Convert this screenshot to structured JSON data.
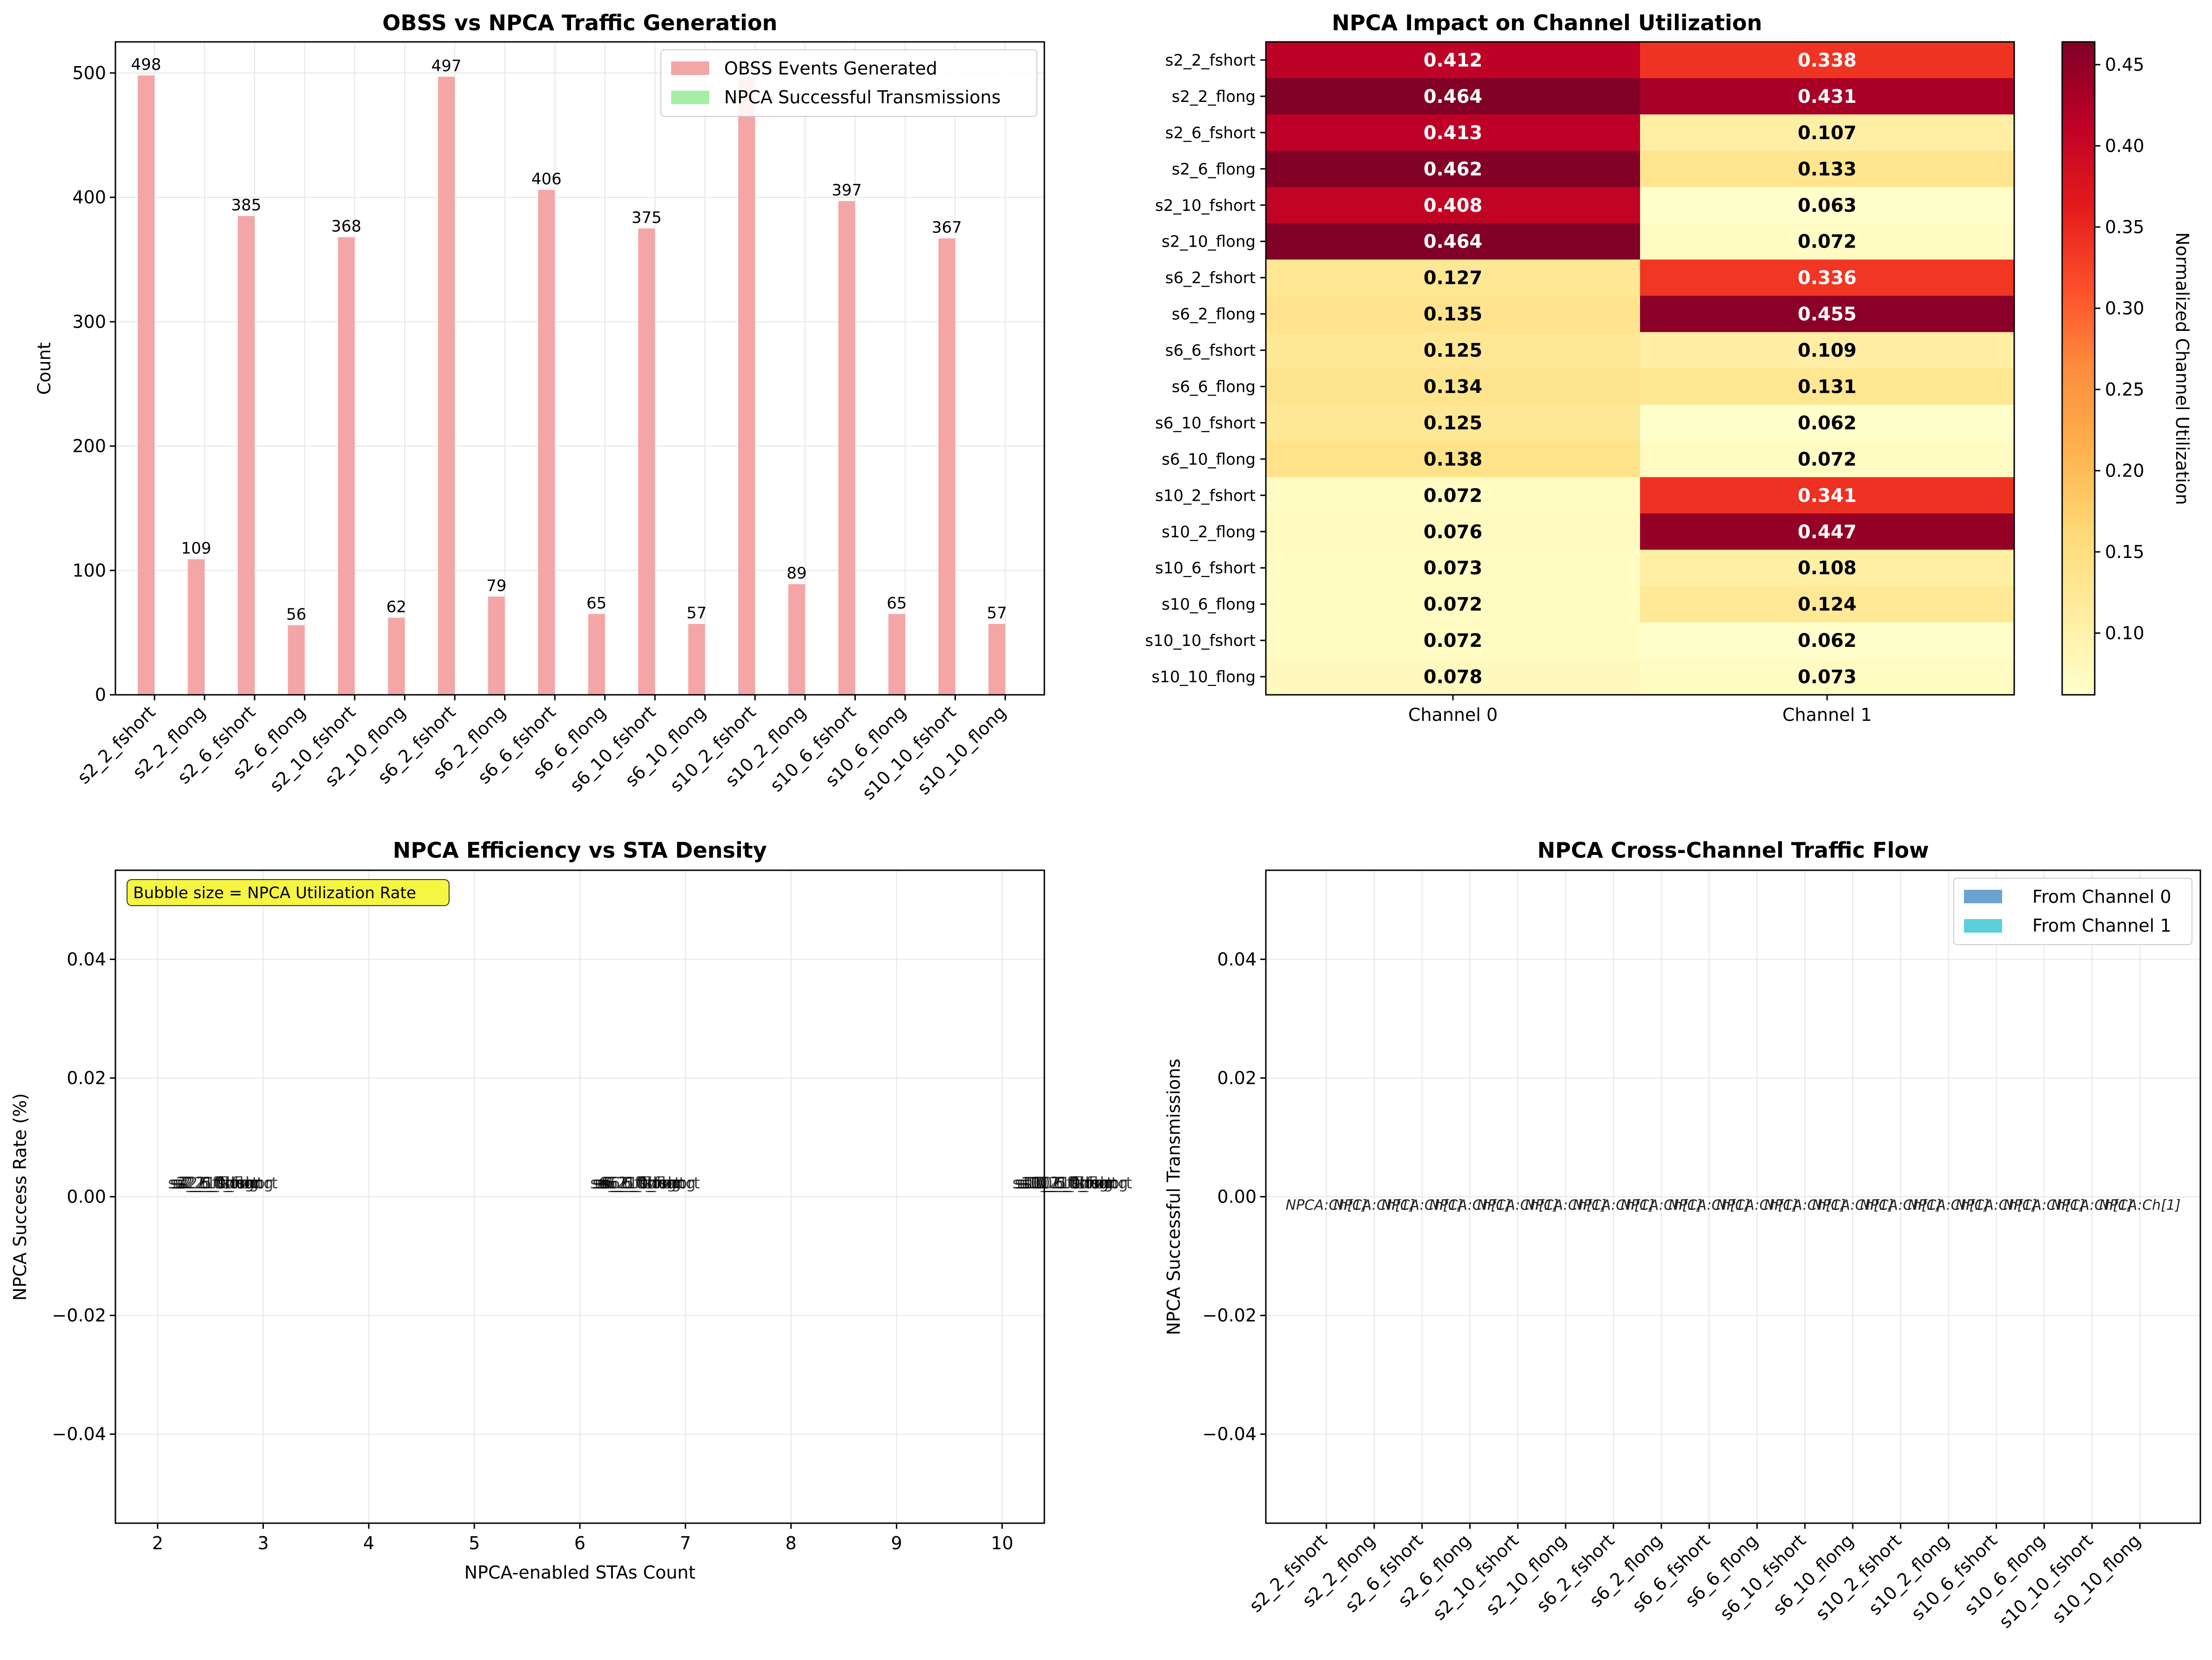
{
  "colors": {
    "obss": "#f4a6a6",
    "npca": "#a6eea6",
    "ch0": "#6aa3d0",
    "ch1": "#5ccfdc",
    "grid": "#e6e6e6"
  },
  "chart_data": [
    {
      "type": "bar",
      "title": "OBSS vs NPCA Traffic Generation",
      "xlabel": "",
      "ylabel": "Count",
      "ylim": [
        0,
        525
      ],
      "yticks": [
        0,
        100,
        200,
        300,
        400,
        500
      ],
      "grid": true,
      "legend_position": "top-right",
      "categories": [
        "s2_2_fshort",
        "s2_2_flong",
        "s2_6_fshort",
        "s2_6_flong",
        "s2_10_fshort",
        "s2_10_flong",
        "s6_2_fshort",
        "s6_2_flong",
        "s6_6_fshort",
        "s6_6_flong",
        "s6_10_fshort",
        "s6_10_flong",
        "s10_2_fshort",
        "s10_2_flong",
        "s10_6_fshort",
        "s10_6_flong",
        "s10_10_fshort",
        "s10_10_flong"
      ],
      "series": [
        {
          "name": "OBSS Events Generated",
          "values": [
            498,
            109,
            385,
            56,
            368,
            62,
            497,
            79,
            406,
            65,
            375,
            57,
            496,
            89,
            397,
            65,
            367,
            57
          ]
        },
        {
          "name": "NPCA Successful Transmissions",
          "values": [
            0,
            0,
            0,
            0,
            0,
            0,
            0,
            0,
            0,
            0,
            0,
            0,
            0,
            0,
            0,
            0,
            0,
            0
          ]
        }
      ],
      "data_labels": [
        "498",
        "109",
        "385",
        "56",
        "368",
        "62",
        "497",
        "79",
        "406",
        "65",
        "375",
        "57",
        "",
        "89",
        "397",
        "65",
        "367",
        "57"
      ]
    },
    {
      "type": "heatmap",
      "title": "NPCA Impact on Channel Utilization",
      "columns": [
        "Channel 0",
        "Channel 1"
      ],
      "rows": [
        "s2_2_fshort",
        "s2_2_flong",
        "s2_6_fshort",
        "s2_6_flong",
        "s2_10_fshort",
        "s2_10_flong",
        "s6_2_fshort",
        "s6_2_flong",
        "s6_6_fshort",
        "s6_6_flong",
        "s6_10_fshort",
        "s6_10_flong",
        "s10_2_fshort",
        "s10_2_flong",
        "s10_6_fshort",
        "s10_6_flong",
        "s10_10_fshort",
        "s10_10_flong"
      ],
      "values": [
        [
          0.412,
          0.338
        ],
        [
          0.464,
          0.431
        ],
        [
          0.413,
          0.107
        ],
        [
          0.462,
          0.133
        ],
        [
          0.408,
          0.063
        ],
        [
          0.464,
          0.072
        ],
        [
          0.127,
          0.336
        ],
        [
          0.135,
          0.455
        ],
        [
          0.125,
          0.109
        ],
        [
          0.134,
          0.131
        ],
        [
          0.125,
          0.062
        ],
        [
          0.138,
          0.072
        ],
        [
          0.072,
          0.341
        ],
        [
          0.076,
          0.447
        ],
        [
          0.073,
          0.108
        ],
        [
          0.072,
          0.124
        ],
        [
          0.072,
          0.062
        ],
        [
          0.078,
          0.073
        ]
      ],
      "cell_labels": [
        [
          "0.412",
          "0.338"
        ],
        [
          "0.464",
          "0.431"
        ],
        [
          "0.413",
          "0.107"
        ],
        [
          "0.462",
          "0.133"
        ],
        [
          "0.408",
          "0.063"
        ],
        [
          "0.464",
          "0.072"
        ],
        [
          "0.127",
          "0.336"
        ],
        [
          "0.135",
          "0.455"
        ],
        [
          "0.125",
          "0.109"
        ],
        [
          "0.134",
          "0.131"
        ],
        [
          "0.125",
          "0.062"
        ],
        [
          "0.138",
          "0.072"
        ],
        [
          "0.072",
          "0.341"
        ],
        [
          "0.076",
          "0.447"
        ],
        [
          "0.073",
          "0.108"
        ],
        [
          "0.072",
          "0.124"
        ],
        [
          "0.072",
          "0.062"
        ],
        [
          "0.078",
          "0.073"
        ]
      ],
      "colorbar_label": "Normalized Channel Utilization",
      "colorbar_ticks": [
        "0.10",
        "0.15",
        "0.20",
        "0.25",
        "0.30",
        "0.35",
        "0.40",
        "0.45"
      ],
      "vmin": 0.062,
      "vmax": 0.464
    },
    {
      "type": "scatter",
      "title": "NPCA Efficiency vs STA Density",
      "xlabel": "NPCA-enabled STAs Count",
      "ylabel": "NPCA Success Rate (%)",
      "xlim": [
        1.6,
        10.4
      ],
      "ylim": [
        -0.055,
        0.055
      ],
      "xticks": [
        2,
        3,
        4,
        5,
        6,
        7,
        8,
        9,
        10
      ],
      "yticks": [
        "0.04",
        "0.02",
        "0.00",
        "−0.02",
        "−0.04"
      ],
      "grid": true,
      "annotation": "Bubble size = NPCA Utilization Rate",
      "points": [
        {
          "x": 2,
          "y": 0,
          "labels": [
            "s2_2_fshort",
            "s2_2_flong",
            "s2_6_fshort",
            "s2_6_flong",
            "s2_10_fshort",
            "s2_10_flong"
          ]
        },
        {
          "x": 6,
          "y": 0,
          "labels": [
            "s6_2_fshort",
            "s6_2_flong",
            "s6_6_fshort",
            "s6_6_flong",
            "s6_10_fshort",
            "s6_10_flong"
          ]
        },
        {
          "x": 10,
          "y": 0,
          "labels": [
            "s10_2_fshort",
            "s10_2_flong",
            "s10_6_fshort",
            "s10_6_flong",
            "s10_10_fshort",
            "s10_10_flong"
          ]
        }
      ]
    },
    {
      "type": "bar",
      "title": "NPCA Cross-Channel Traffic Flow",
      "xlabel": "",
      "ylabel": "NPCA Successful Transmissions",
      "ylim": [
        -0.055,
        0.055
      ],
      "yticks": [
        "0.04",
        "0.02",
        "0.00",
        "−0.02",
        "−0.04"
      ],
      "grid": true,
      "legend_position": "top-right",
      "categories": [
        "s2_2_fshort",
        "s2_2_flong",
        "s2_6_fshort",
        "s2_6_flong",
        "s2_10_fshort",
        "s2_10_flong",
        "s6_2_fshort",
        "s6_2_flong",
        "s6_6_fshort",
        "s6_6_flong",
        "s6_10_fshort",
        "s6_10_flong",
        "s10_2_fshort",
        "s10_2_flong",
        "s10_6_fshort",
        "s10_6_flong",
        "s10_10_fshort",
        "s10_10_flong"
      ],
      "series": [
        {
          "name": "From Channel 0",
          "values": [
            0,
            0,
            0,
            0,
            0,
            0,
            0,
            0,
            0,
            0,
            0,
            0,
            0,
            0,
            0,
            0,
            0,
            0
          ]
        },
        {
          "name": "From Channel 1",
          "values": [
            0,
            0,
            0,
            0,
            0,
            0,
            0,
            0,
            0,
            0,
            0,
            0,
            0,
            0,
            0,
            0,
            0,
            0
          ]
        }
      ],
      "bar_annotations": [
        "NPCA:Ch[1]",
        "NPCA:Ch[1]",
        "NPCA:Ch[1]",
        "NPCA:Ch[1]",
        "NPCA:Ch[1]",
        "NPCA:Ch[1]",
        "NPCA:Ch[1]",
        "NPCA:Ch[1]",
        "NPCA:Ch[1]",
        "NPCA:Ch[1]",
        "NPCA:Ch[1]",
        "NPCA:Ch[1]",
        "NPCA:Ch[1]",
        "NPCA:Ch[1]",
        "NPCA:Ch[1]",
        "NPCA:Ch[1]",
        "NPCA:Ch[1]",
        "NPCA:Ch[1]"
      ]
    }
  ]
}
